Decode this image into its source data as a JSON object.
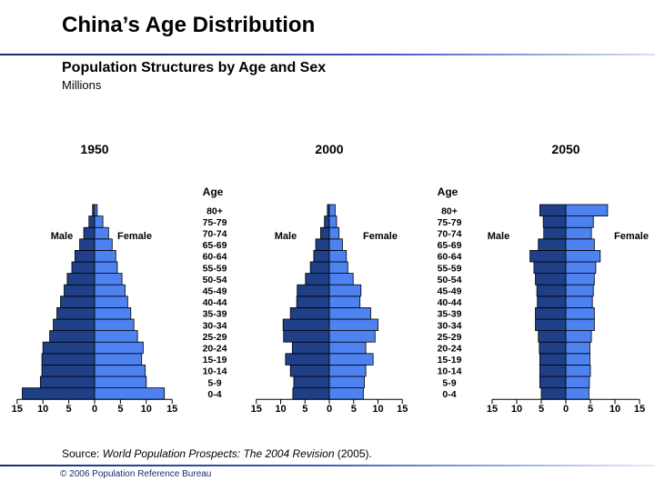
{
  "header": {
    "title": "China’s Age Distribution",
    "subtitle": "Population Structures by Age and Sex",
    "units": "Millions"
  },
  "footer": {
    "source_prefix": "Source: ",
    "source_title": "World Population Prospects: The 2004 Revision",
    "source_suffix": " (2005).",
    "copyright": "© 2006 Population Reference Bureau"
  },
  "colors": {
    "male": "#1f3f86",
    "female": "#4d82f0",
    "outline": "#000000"
  },
  "chart_data": [
    {
      "type": "bar",
      "title": "1950",
      "age_axis_label": "Age",
      "male_label": "Male",
      "female_label": "Female",
      "categories": [
        "0-4",
        "5-9",
        "10-14",
        "15-19",
        "20-24",
        "25-29",
        "30-34",
        "35-39",
        "40-44",
        "45-49",
        "50-54",
        "55-59",
        "60-64",
        "65-69",
        "70-74",
        "75-79",
        "80+"
      ],
      "series": [
        {
          "name": "Male",
          "values": [
            14,
            10.5,
            10.2,
            10.2,
            10,
            8.7,
            8,
            7.3,
            6.6,
            5.9,
            5.3,
            4.4,
            3.8,
            2.9,
            2.1,
            1.1,
            0.4
          ]
        },
        {
          "name": "Female",
          "values": [
            13.5,
            10,
            9.8,
            9.1,
            9.4,
            8.3,
            7.6,
            7,
            6.4,
            5.9,
            5.3,
            4.4,
            4.1,
            3.4,
            2.7,
            1.6,
            0.5
          ]
        }
      ],
      "xticks": [
        "15",
        "10",
        "5",
        "0",
        "5",
        "10",
        "15"
      ],
      "xlim": [
        -15,
        15
      ]
    },
    {
      "type": "bar",
      "title": "2000",
      "age_axis_label": "Age",
      "male_label": "Male",
      "female_label": "Female",
      "categories": [
        "0-4",
        "5-9",
        "10-14",
        "15-19",
        "20-24",
        "25-29",
        "30-34",
        "35-39",
        "40-44",
        "45-49",
        "50-54",
        "55-59",
        "60-64",
        "65-69",
        "70-74",
        "75-79",
        "80+"
      ],
      "series": [
        {
          "name": "Male",
          "values": [
            7.5,
            7.3,
            8,
            9,
            7.6,
            9.4,
            9.5,
            8,
            6.7,
            6.6,
            4.9,
            3.9,
            3.2,
            2.8,
            1.8,
            1,
            0.4
          ]
        },
        {
          "name": "Female",
          "values": [
            7,
            7.2,
            7.5,
            9,
            7.5,
            9.4,
            10,
            8.5,
            6.3,
            6.5,
            4.9,
            3.8,
            3.5,
            2.7,
            2,
            1.5,
            1.2
          ]
        }
      ],
      "xticks": [
        "15",
        "10",
        "5",
        "0",
        "5",
        "10",
        "15"
      ],
      "xlim": [
        -15,
        15
      ]
    },
    {
      "type": "bar",
      "title": "2050",
      "age_axis_label": "Age",
      "male_label": "Male",
      "female_label": "Female",
      "categories": [
        "0-4",
        "5-9",
        "10-14",
        "15-19",
        "20-24",
        "25-29",
        "30-34",
        "35-39",
        "40-44",
        "45-49",
        "50-54",
        "55-59",
        "60-64",
        "65-69",
        "70-74",
        "75-79",
        "80+"
      ],
      "series": [
        {
          "name": "Male",
          "values": [
            5,
            5.3,
            5.3,
            5.3,
            5.4,
            5.6,
            6.2,
            6.2,
            5.8,
            5.9,
            6.2,
            6.5,
            7.3,
            5.6,
            4.5,
            4.6,
            5.3
          ]
        },
        {
          "name": "Female",
          "values": [
            4.7,
            4.8,
            5,
            4.9,
            4.9,
            5.2,
            5.8,
            5.8,
            5.4,
            5.6,
            5.8,
            6.1,
            7,
            5.8,
            5.2,
            5.6,
            8.5
          ]
        }
      ],
      "xticks": [
        "15",
        "10",
        "5",
        "0",
        "5",
        "10",
        "15"
      ],
      "xlim": [
        -15,
        15
      ]
    }
  ]
}
